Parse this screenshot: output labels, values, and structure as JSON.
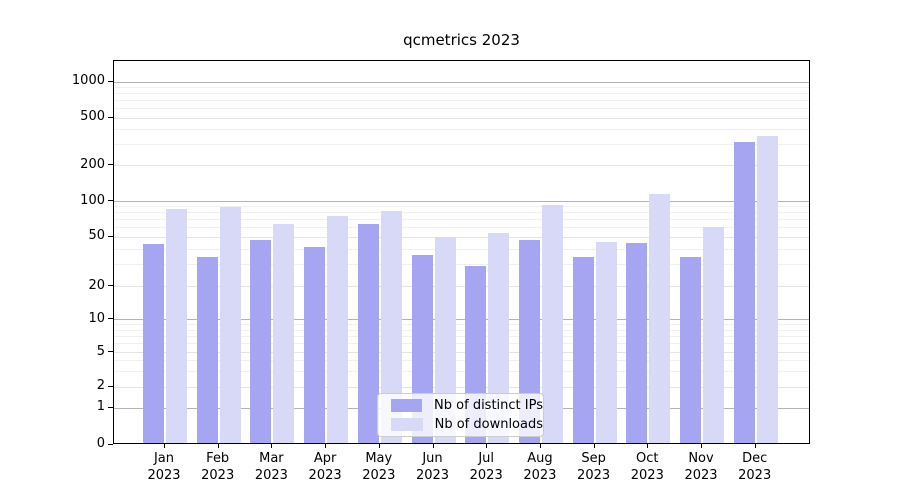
{
  "title": "qcmetrics 2023",
  "chart_data": {
    "type": "bar",
    "title": "qcmetrics 2023",
    "categories": [
      "Jan 2023",
      "Feb 2023",
      "Mar 2023",
      "Apr 2023",
      "May 2023",
      "Jun 2023",
      "Jul 2023",
      "Aug 2023",
      "Sep 2023",
      "Oct 2023",
      "Nov 2023",
      "Dec 2023"
    ],
    "series": [
      {
        "name": "Nb of distinct IPs",
        "color": "#a5a5f1",
        "values": [
          42,
          33,
          45,
          40,
          62,
          34,
          28,
          45,
          33,
          43,
          33,
          300
        ]
      },
      {
        "name": "Nb of downloads",
        "color": "#d8d8f7",
        "values": [
          83,
          85,
          62,
          72,
          79,
          48,
          52,
          89,
          44,
          110,
          58,
          335
        ]
      }
    ],
    "xlabel": "",
    "ylabel": "",
    "yscale": "symlog",
    "ylim": [
      0,
      1500
    ],
    "y_major_ticks": [
      0,
      1,
      2,
      5,
      10,
      20,
      50,
      100,
      200,
      500,
      1000
    ],
    "y_major_tick_labels": [
      "0",
      "1",
      "2",
      "5",
      "10",
      "20",
      "50",
      "100",
      "200",
      "500",
      "1000"
    ],
    "y_minor_ticks": [
      3,
      4,
      6,
      7,
      8,
      9,
      30,
      40,
      60,
      70,
      80,
      90,
      300,
      400,
      600,
      700,
      800,
      900
    ],
    "grid": true,
    "legend_position": "lower center"
  },
  "colors": {
    "background": "#ffffff",
    "spine": "#000000",
    "grid_power10": "#b3b3b3",
    "grid_major": "#e4e4e4",
    "grid_minor": "#f0f0f0",
    "series_ips": "#a5a5f1",
    "series_downloads": "#d8d8f7"
  }
}
